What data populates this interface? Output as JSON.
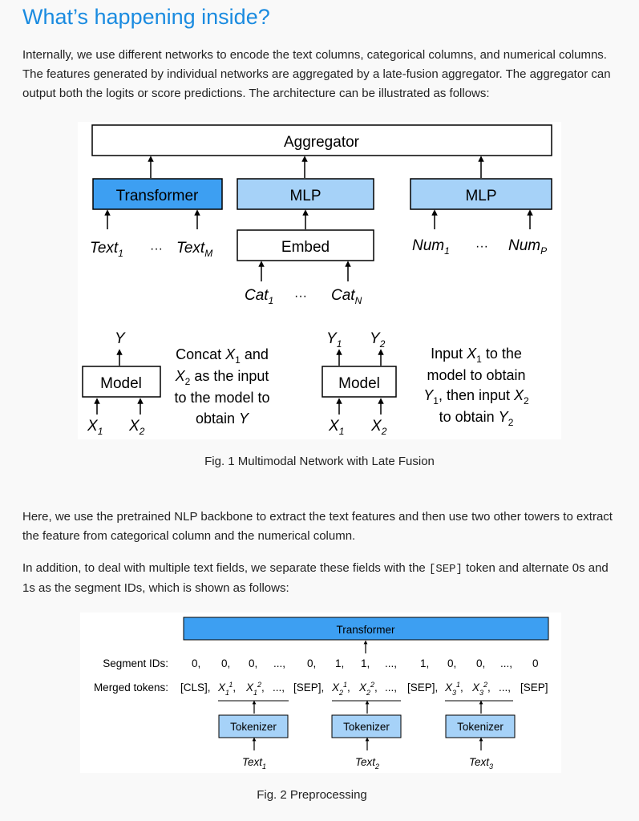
{
  "heading": "What’s happening inside?",
  "intro": "Internally, we use different networks to encode the text columns, categorical columns, and numerical columns. The features generated by individual networks are aggregated by a late-fusion aggregator. The aggregator can output both the logits or score predictions. The architecture can be illustrated as follows:",
  "fig1": {
    "aggregator": "Aggregator",
    "transformer": "Transformer",
    "mlp1": "MLP",
    "mlp2": "MLP",
    "embed": "Embed",
    "text_base": "Text",
    "text_sub1": "1",
    "text_subm": "M",
    "cat_base": "Cat",
    "cat_sub1": "1",
    "cat_subn": "N",
    "num_base": "Num",
    "num_sub1": "1",
    "num_subp": "P",
    "dots": "···",
    "model": "Model",
    "y": "Y",
    "x": "X",
    "sub1": "1",
    "sub2": "2",
    "concat_l1a": "Concat ",
    "concat_l1b": " and",
    "concat_l2": " as the input",
    "concat_l3": "to the model to",
    "concat_l4": "obtain ",
    "input_l1a": "Input ",
    "input_l1b": " to the",
    "input_l2": "model to obtain",
    "input_l3": ", then input ",
    "input_l4": "to obtain ",
    "caption": "Fig. 1  Multimodal Network with Late Fusion"
  },
  "para2": "Here, we use the pretrained NLP backbone to extract the text features and then use two other towers to extract the feature from categorical column and the numerical column.",
  "para3_a": "In addition, to deal with multiple text fields, we separate these fields with the ",
  "para3_code": "[SEP]",
  "para3_b": " token and alternate 0s and 1s as the segment IDs, which is shown as follows:",
  "fig2": {
    "transformer": "Transformer",
    "segment_label": "Segment IDs:",
    "merged_label": "Merged tokens:",
    "segment_ids": [
      "0,",
      "0,",
      "0,",
      "...,",
      "0,",
      "1,",
      "1,",
      "...,",
      "1,",
      "0,",
      "0,",
      "...,",
      "0"
    ],
    "cls": "[CLS],",
    "sep": "[SEP],",
    "sep_end": "[SEP]",
    "ellipsis": "...,",
    "tokenizer": "Tokenizer",
    "text_base": "Text",
    "caption": "Fig. 2  Preprocessing"
  }
}
